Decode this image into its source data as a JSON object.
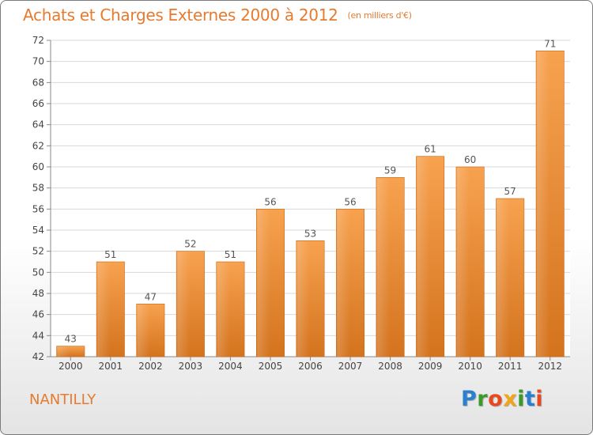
{
  "title": {
    "main": "Achats et Charges Externes 2000 à 2012",
    "unit": "(en milliers d'€)"
  },
  "commune": "NANTILLY",
  "logo": {
    "letters": [
      "P",
      "r",
      "o",
      "x",
      "i",
      "t",
      "i"
    ],
    "colors": [
      "#2a7fcf",
      "#3a9a2a",
      "#e8491e",
      "#f2a516",
      "#3a9a2a",
      "#2a7fcf",
      "#e8491e"
    ]
  },
  "chart_data": {
    "type": "bar",
    "categories": [
      "2000",
      "2001",
      "2002",
      "2003",
      "2004",
      "2005",
      "2006",
      "2007",
      "2008",
      "2009",
      "2010",
      "2011",
      "2012"
    ],
    "values": [
      43,
      51,
      47,
      52,
      51,
      56,
      53,
      56,
      59,
      61,
      60,
      57,
      71
    ],
    "ylim": [
      42,
      72
    ],
    "yticks": [
      42,
      44,
      46,
      48,
      50,
      52,
      54,
      56,
      58,
      60,
      62,
      64,
      66,
      68,
      70,
      72
    ],
    "grid": true,
    "bar_color": "#f28c2e",
    "label_color": "#555555"
  }
}
